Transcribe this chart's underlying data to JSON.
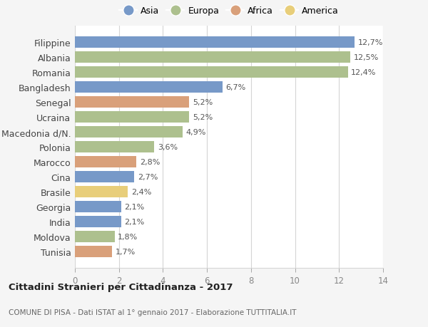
{
  "countries": [
    "Filippine",
    "Albania",
    "Romania",
    "Bangladesh",
    "Senegal",
    "Ucraina",
    "Macedonia d/N.",
    "Polonia",
    "Marocco",
    "Cina",
    "Brasile",
    "Georgia",
    "India",
    "Moldova",
    "Tunisia"
  ],
  "values": [
    12.7,
    12.5,
    12.4,
    6.7,
    5.2,
    5.2,
    4.9,
    3.6,
    2.8,
    2.7,
    2.4,
    2.1,
    2.1,
    1.8,
    1.7
  ],
  "labels": [
    "12,7%",
    "12,5%",
    "12,4%",
    "6,7%",
    "5,2%",
    "5,2%",
    "4,9%",
    "3,6%",
    "2,8%",
    "2,7%",
    "2,4%",
    "2,1%",
    "2,1%",
    "1,8%",
    "1,7%"
  ],
  "continents": [
    "Asia",
    "Europa",
    "Europa",
    "Asia",
    "Africa",
    "Europa",
    "Europa",
    "Europa",
    "Africa",
    "Asia",
    "America",
    "Asia",
    "Asia",
    "Europa",
    "Africa"
  ],
  "colors": {
    "Asia": "#7799c8",
    "Europa": "#adc08e",
    "Africa": "#d9a07a",
    "America": "#e8ce7a"
  },
  "legend_labels": [
    "Asia",
    "Europa",
    "Africa",
    "America"
  ],
  "xlim": [
    0,
    14
  ],
  "xticks": [
    0,
    2,
    4,
    6,
    8,
    10,
    12,
    14
  ],
  "title": "Cittadini Stranieri per Cittadinanza - 2017",
  "subtitle": "COMUNE DI PISA - Dati ISTAT al 1° gennaio 2017 - Elaborazione TUTTITALIA.IT",
  "bg_color": "#f5f5f5",
  "bar_bg_color": "#ffffff",
  "grid_color": "#d5d5d5"
}
